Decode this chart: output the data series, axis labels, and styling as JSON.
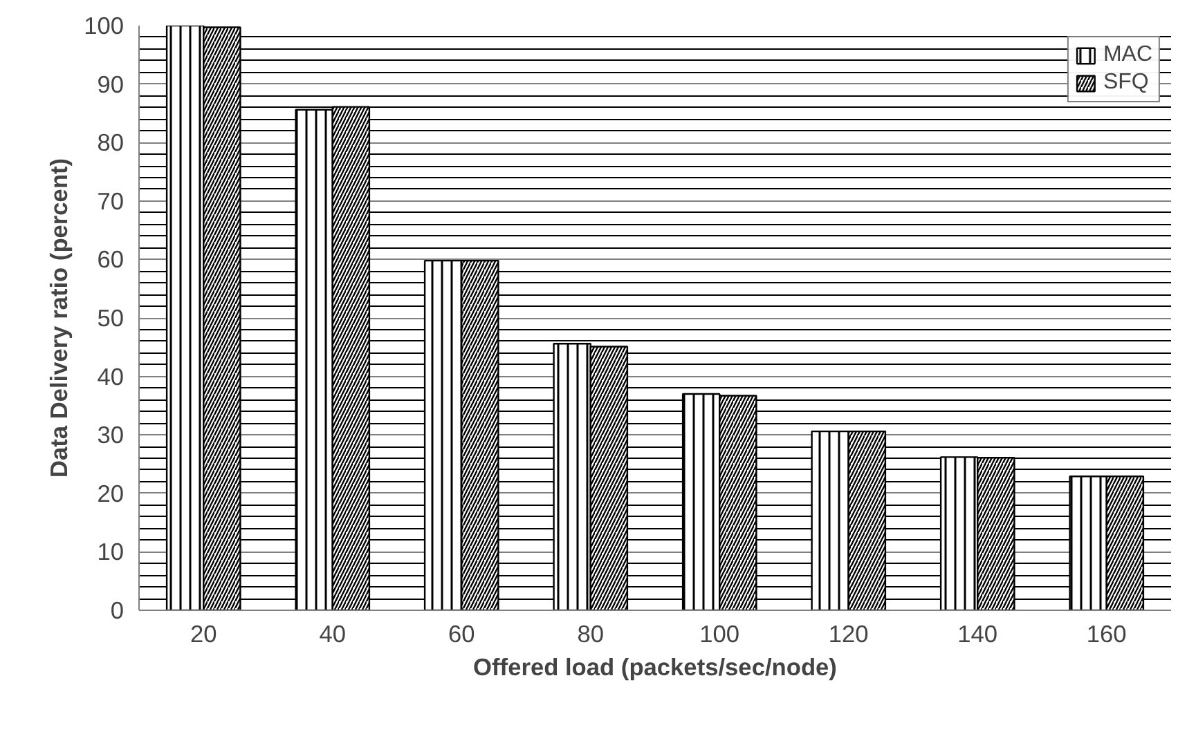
{
  "chart_data": {
    "type": "bar",
    "xlabel": "Offered load (packets/sec/node)",
    "ylabel": "Data Delivery ratio (percent)",
    "categories": [
      "20",
      "40",
      "60",
      "80",
      "100",
      "120",
      "140",
      "160"
    ],
    "series": [
      {
        "name": "MAC",
        "color": "#ffffff",
        "values": [
          100,
          85.6,
          59.8,
          45.6,
          37.0,
          30.6,
          26.2,
          22.9
        ]
      },
      {
        "name": "SFQ",
        "color": "#ffffff",
        "values": [
          99.7,
          86.1,
          59.8,
          45.1,
          36.7,
          30.6,
          26.1,
          22.9
        ]
      }
    ],
    "ylim": [
      0,
      100
    ],
    "yticks": [
      0,
      10,
      20,
      30,
      40,
      50,
      60,
      70,
      80,
      90,
      100
    ],
    "grid": "y",
    "legend": "top right"
  }
}
